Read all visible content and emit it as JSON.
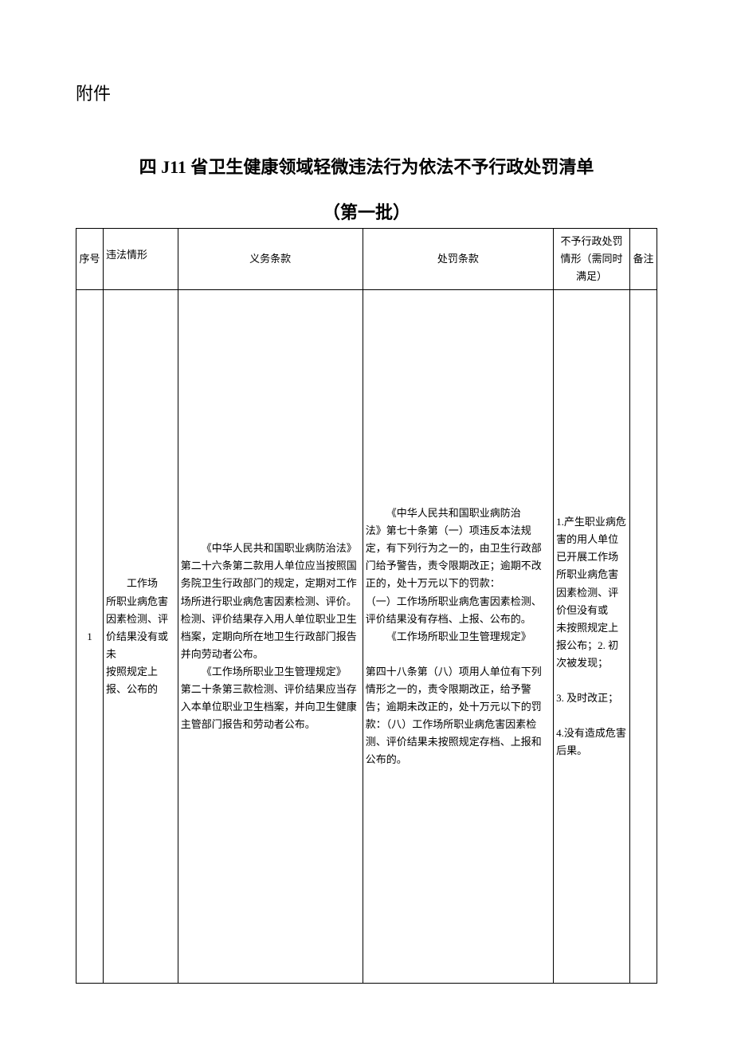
{
  "page": {
    "attachment_label": "附件",
    "title": "四 J11 省卫生健康领域轻微违法行为依法不予行政处罚清单",
    "subtitle": "（第一批）",
    "background_color": "#ffffff",
    "text_color": "#000000",
    "border_color": "#000000"
  },
  "table": {
    "headers": {
      "no": "序号",
      "violation": "违法情形",
      "obligation": "义务条款",
      "penalty": "处罚条款",
      "condition": "不予行政处罚情形（需同时满足）",
      "remark": "备注"
    },
    "rows": [
      {
        "no": "1",
        "violation_indent": "工作场",
        "violation_rest": "所职业病危害因素检测、评价结果没有或未\n按照规定上报、公布的",
        "obligation_p1_indent": "《中华人民共和国职业病防治法》",
        "obligation_p1_rest": "第二十六条第二款用人单位应当按照国务院卫生行政部门的规定，定期对工作场所进行职业病危害因素检测、评价。检测、评价结果存入用人单位职业卫生档案，定期向所在地卫生行政部门报告并向劳动者公布。",
        "obligation_p2_indent": "《工作场所职业卫生管理规定》",
        "obligation_p2_rest": "第二十条第三款检测、评价结果应当存入本单位职业卫生档案，并向卫生健康主管部门报告和劳动者公布。",
        "penalty_p1_indent": "《中华人民共和国职业病防治",
        "penalty_p1_rest": "法》第七十条第（一）项违反本法规定，有下列行为之一的，由卫生行政部门给予警告，责令限期改正；逾期不改正的，处十万元以下的罚款：",
        "penalty_p2": "（一）工作场所职业病危害因素检测、评价结果没有存档、上报、公布的。",
        "penalty_p3_indent": "《工作场所职业卫生管理规定》",
        "penalty_p4": "第四十八条第（八）项用人单位有下列情形之一的，责令限期改正，给予警告；逾期未改正的，处十万元以下的罚款：（八）工作场所职业病危害因素检测、评价结果未按照规定存档、上报和公布的。",
        "condition": "1.产生职业病危害的用人单位已开展工作场所职业病危害因素检测、评价但没有或\n未按照规定上报公布；2. 初次被发现；\n\n3. 及时改正；\n\n4.没有造成危害后果。",
        "remark": ""
      }
    ]
  }
}
